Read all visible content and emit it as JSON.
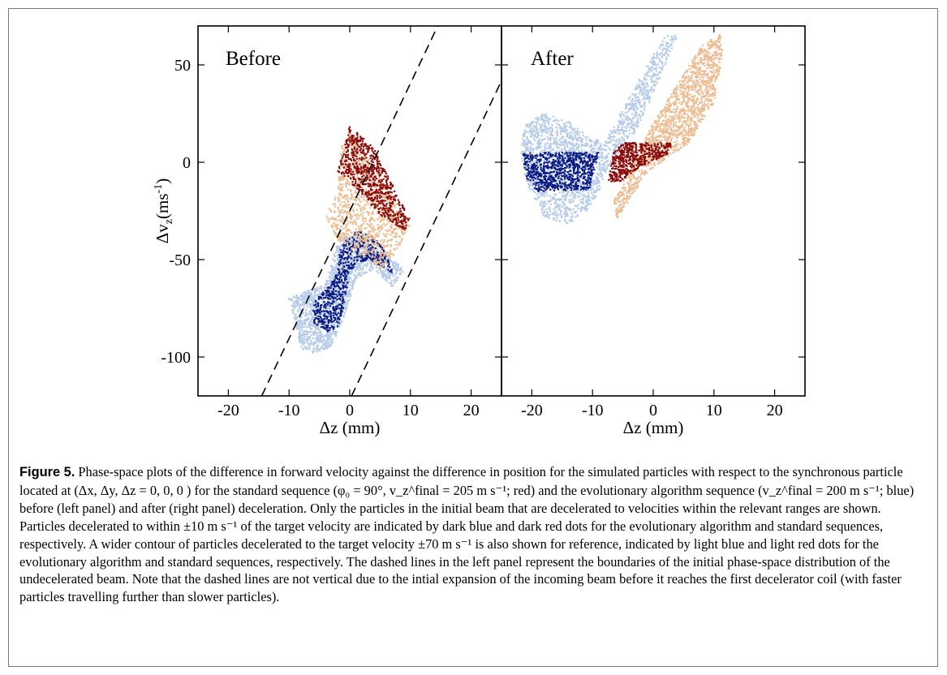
{
  "colors": {
    "dark_blue": "#0b1a82",
    "light_blue": "#b5cbe8",
    "dark_red": "#8b0a0a",
    "light_red": "#ecbd92",
    "boundary": "#000000"
  },
  "chart_data": [
    {
      "type": "scatter",
      "panel_label": "Before",
      "xlabel": "Δz (mm)",
      "ylabel": "Δv",
      "ylabel_sub": "z",
      "ylabel_units": "(ms",
      "ylabel_sup": "-1",
      "ylabel_close": ")",
      "xlim": [
        -25,
        25
      ],
      "ylim": [
        -120,
        70
      ],
      "xticks": [
        -20,
        -10,
        0,
        10,
        20
      ],
      "xtick_labels": [
        "-20",
        "-10",
        "0",
        "10",
        "20"
      ],
      "yticks": [
        50,
        0,
        -50,
        -100
      ],
      "ytick_labels": [
        "50",
        "0",
        "-50",
        "-100"
      ],
      "boundary_lines": [
        {
          "style": "dashed",
          "from": [
            -14.5,
            -120
          ],
          "to": [
            14.5,
            70
          ]
        },
        {
          "style": "dashed",
          "from": [
            0.3,
            -120
          ],
          "to": [
            29.3,
            70
          ]
        }
      ],
      "series": [
        {
          "color_key": "light_blue",
          "region": "polygon",
          "count": 1700,
          "polygon": [
            [
              -9,
              -82
            ],
            [
              -10,
              -70
            ],
            [
              -7,
              -66
            ],
            [
              -4,
              -63
            ],
            [
              -2.5,
              -45
            ],
            [
              -1,
              -38
            ],
            [
              2,
              -38
            ],
            [
              6,
              -48
            ],
            [
              8,
              -52
            ],
            [
              9,
              -56
            ],
            [
              7,
              -64
            ],
            [
              4,
              -55
            ],
            [
              1,
              -60
            ],
            [
              -1,
              -80
            ],
            [
              -3,
              -95
            ],
            [
              -6,
              -98
            ],
            [
              -8,
              -96
            ]
          ]
        },
        {
          "color_key": "dark_blue",
          "region": "polygon",
          "count": 650,
          "polygon": [
            [
              -6,
              -73
            ],
            [
              -5,
              -68
            ],
            [
              -3.5,
              -64
            ],
            [
              -2,
              -56
            ],
            [
              -1.5,
              -43
            ],
            [
              1,
              -35
            ],
            [
              4,
              -38
            ],
            [
              6.5,
              -48
            ],
            [
              7,
              -57
            ],
            [
              5,
              -53
            ],
            [
              3,
              -50
            ],
            [
              1,
              -52
            ],
            [
              0,
              -58
            ],
            [
              -1,
              -75
            ],
            [
              -2,
              -85
            ],
            [
              -4,
              -88
            ],
            [
              -6,
              -82
            ]
          ]
        },
        {
          "color_key": "light_red",
          "region": "polygon",
          "count": 1000,
          "polygon": [
            [
              -1.5,
              8
            ],
            [
              0,
              17
            ],
            [
              5,
              -8
            ],
            [
              10,
              -32
            ],
            [
              7.5,
              -47
            ],
            [
              5,
              -55
            ],
            [
              3,
              -50
            ],
            [
              -2,
              -40
            ],
            [
              -4,
              -28
            ],
            [
              -2,
              -15
            ]
          ]
        },
        {
          "color_key": "dark_red",
          "region": "polygon",
          "count": 700,
          "polygon": [
            [
              -1,
              6
            ],
            [
              0,
              19
            ],
            [
              4,
              7
            ],
            [
              10,
              -30
            ],
            [
              9,
              -35
            ],
            [
              5,
              -27
            ],
            [
              0,
              -10
            ],
            [
              -2,
              -5
            ]
          ]
        }
      ]
    },
    {
      "type": "scatter",
      "panel_label": "After",
      "xlabel": "Δz (mm)",
      "xlim": [
        -25,
        25
      ],
      "ylim": [
        -120,
        70
      ],
      "xticks": [
        -20,
        -10,
        0,
        10,
        20
      ],
      "xtick_labels": [
        "-20",
        "-10",
        "0",
        "10",
        "20"
      ],
      "series": [
        {
          "color_key": "light_blue",
          "region": "polygon",
          "count": 1900,
          "polygon": [
            [
              -22,
              5
            ],
            [
              -21,
              20
            ],
            [
              -18,
              25
            ],
            [
              -14,
              21
            ],
            [
              -11,
              14
            ],
            [
              -8,
              10
            ],
            [
              -5,
              28
            ],
            [
              0,
              55
            ],
            [
              2,
              65
            ],
            [
              4,
              65
            ],
            [
              0,
              35
            ],
            [
              -3,
              15
            ],
            [
              -7,
              0
            ],
            [
              -9,
              -15
            ],
            [
              -11,
              -25
            ],
            [
              -14,
              -32
            ],
            [
              -18,
              -28
            ],
            [
              -21,
              -10
            ]
          ]
        },
        {
          "color_key": "dark_blue",
          "region": "polygon",
          "count": 750,
          "polygon": [
            [
              -21.5,
              5
            ],
            [
              -9,
              5
            ],
            [
              -10.5,
              -14
            ],
            [
              -19,
              -15
            ],
            [
              -21,
              -8
            ]
          ]
        },
        {
          "color_key": "light_red",
          "region": "polygon",
          "count": 1500,
          "polygon": [
            [
              -6.5,
              -20
            ],
            [
              -5,
              -10
            ],
            [
              0,
              20
            ],
            [
              5,
              45
            ],
            [
              8,
              60
            ],
            [
              11,
              66
            ],
            [
              11.5,
              55
            ],
            [
              10,
              30
            ],
            [
              6,
              10
            ],
            [
              -1,
              -5
            ],
            [
              -4,
              -20
            ],
            [
              -6,
              -29
            ]
          ]
        },
        {
          "color_key": "dark_red",
          "region": "polygon",
          "count": 500,
          "polygon": [
            [
              -7.5,
              -10
            ],
            [
              -6.5,
              5
            ],
            [
              -5,
              10
            ],
            [
              3,
              10
            ],
            [
              3,
              5
            ],
            [
              -2,
              -2
            ],
            [
              -5.5,
              -10
            ]
          ]
        }
      ]
    }
  ],
  "caption": {
    "label": "Figure 5.",
    "text": " Phase-space plots of the difference in forward velocity against the difference in position for the simulated particles with respect to the synchronous particle located at (Δx, Δy, Δz = 0, 0, 0 ) for the standard sequence (φ₀ = 90°, v_z^final = 205 m s⁻¹; red) and the evolutionary algorithm sequence (v_z^final = 200 m s⁻¹; blue) before (left panel) and after (right panel) deceleration. Only the particles in the initial beam that are decelerated to velocities within the relevant ranges are shown. Particles decelerated to within ±10 m s⁻¹ of the target velocity are indicated by dark blue and dark red dots for the evolutionary algorithm and standard sequences, respectively. A wider contour of particles decelerated to the target velocity ±70 m s⁻¹ is also shown for reference, indicated by light blue and light red dots for the evolutionary algorithm and standard sequences, respectively. The dashed lines in the left panel represent the boundaries of the initial phase-space distribution of the undecelerated beam. Note that the dashed lines are not vertical due to the intial expansion of the incoming beam before it reaches the first decelerator coil (with faster particles travelling further than slower particles)."
  }
}
